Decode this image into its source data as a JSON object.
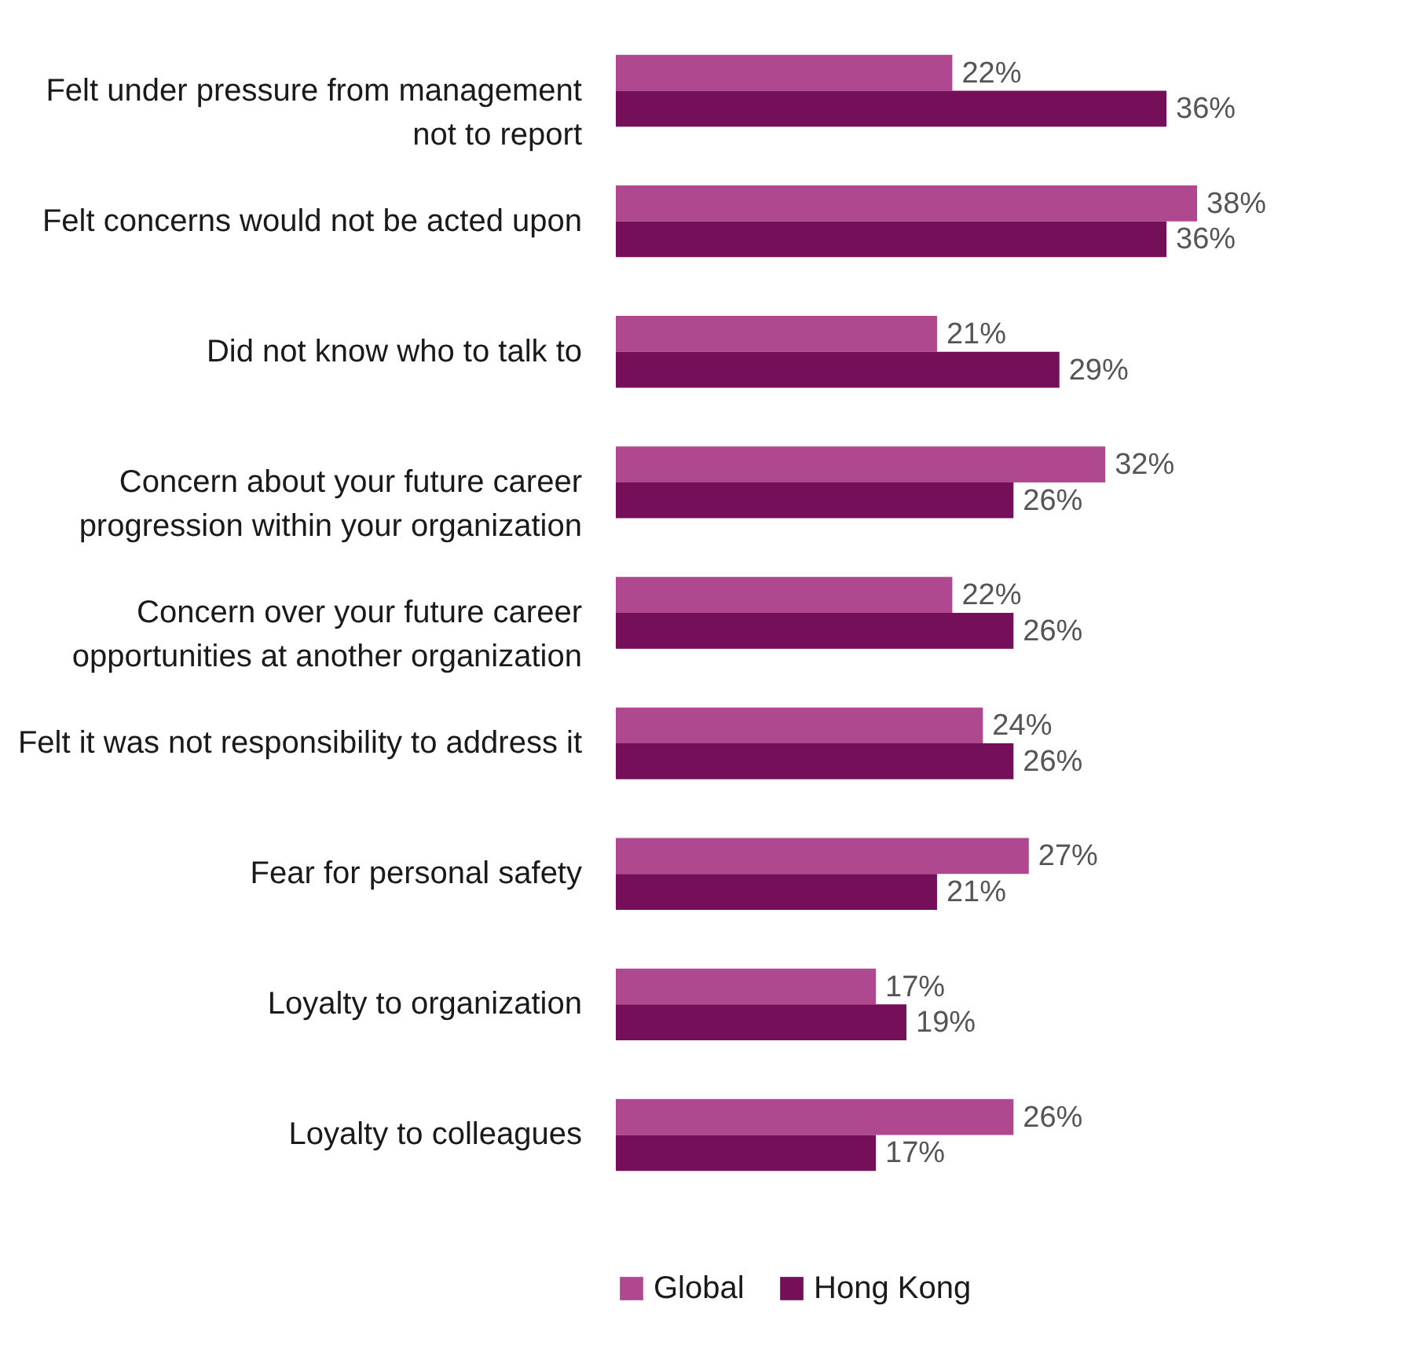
{
  "chart_data": {
    "type": "bar",
    "orientation": "horizontal",
    "categories": [
      "Felt under pressure from management not to report",
      "Felt concerns would not be acted upon",
      "Did not know who to talk to",
      "Concern about your future career progression within your organization",
      "Concern over your future career opportunities at another organization",
      "Felt it was not responsibility to address it",
      "Fear for personal safety",
      "Loyalty to organization",
      "Loyalty to colleagues"
    ],
    "series": [
      {
        "name": "Global",
        "color": "#b0488f",
        "values": [
          22,
          38,
          21,
          32,
          22,
          24,
          27,
          17,
          26
        ],
        "value_labels": [
          "22%",
          "38%",
          "21%",
          "32%",
          "22%",
          "24%",
          "27%",
          "17%",
          "26%"
        ]
      },
      {
        "name": "Hong Kong",
        "color": "#750f5a",
        "values": [
          36,
          36,
          29,
          26,
          26,
          26,
          21,
          19,
          17
        ],
        "value_labels": [
          "36%",
          "36%",
          "29%",
          "26%",
          "26%",
          "26%",
          "21%",
          "19%",
          "17%"
        ]
      }
    ],
    "legend": "bottom",
    "tick_labels": "y"
  }
}
